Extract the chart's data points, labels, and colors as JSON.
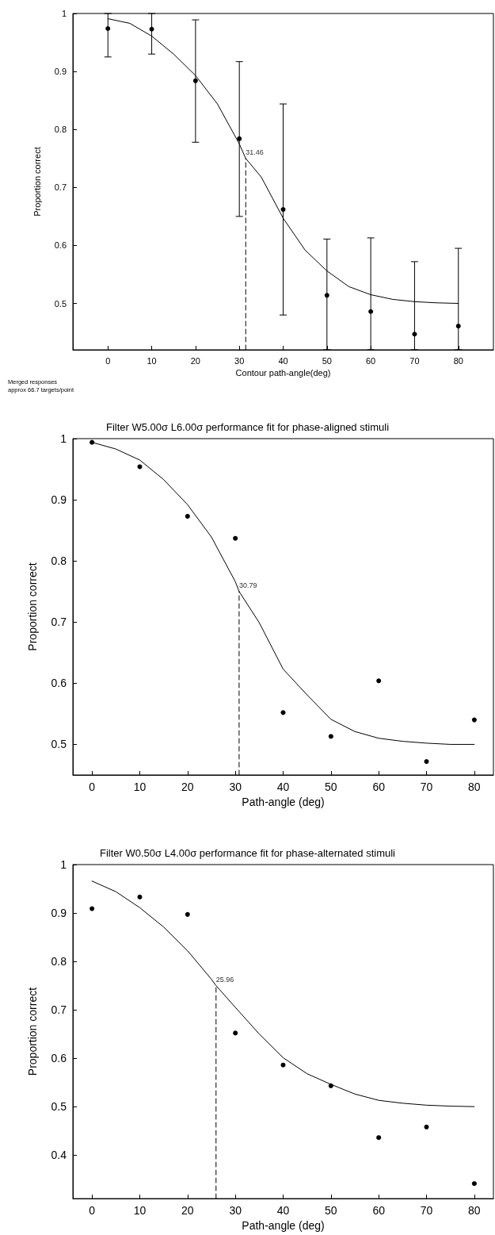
{
  "chart_data": [
    {
      "type": "scatter",
      "xlabel": "Contour path-angle(deg)",
      "ylabel": "Proportion correct",
      "xlim": [
        -8,
        88
      ],
      "xticks": [
        0,
        10,
        20,
        30,
        40,
        50,
        60,
        70,
        80
      ],
      "ylim": [
        0.42,
        1
      ],
      "yticks": [
        0.5,
        0.6,
        0.7,
        0.8,
        0.9,
        1
      ],
      "grid": false,
      "annotations": [
        "Merged responses",
        "approx 66.7 targets/point",
        {
          "text": "31.46",
          "x": 31.46,
          "y": 0.75
        }
      ],
      "series": [
        {
          "marker": "circle",
          "color": "#000000",
          "x": [
            0,
            10,
            20,
            30,
            40,
            50,
            60,
            70,
            80
          ],
          "values": [
            0.974,
            0.973,
            0.884,
            0.784,
            0.662,
            0.514,
            0.486,
            0.447,
            0.461
          ],
          "errors": [
            [
              0.925,
              1.0
            ],
            [
              0.93,
              1.0
            ],
            [
              0.778,
              0.989
            ],
            [
              0.65,
              0.917
            ],
            [
              0.48,
              0.844
            ],
            [
              0.42,
              0.611
            ],
            [
              0.42,
              0.613
            ],
            [
              0.42,
              0.572
            ],
            [
              0.42,
              0.595
            ]
          ]
        },
        {
          "type": "line",
          "marker": "none",
          "color": "#000000",
          "x": [
            0,
            5,
            10,
            15,
            20,
            25,
            30,
            31.46,
            35,
            40,
            45,
            50,
            55,
            60,
            65,
            70,
            75,
            80
          ],
          "values": [
            0.991,
            0.983,
            0.961,
            0.93,
            0.893,
            0.844,
            0.775,
            0.75,
            0.718,
            0.647,
            0.592,
            0.556,
            0.529,
            0.515,
            0.507,
            0.503,
            0.501,
            0.5
          ]
        },
        {
          "type": "line",
          "marker": "none",
          "line_style": "dashed",
          "color": "#000000",
          "x": [
            31.46,
            31.46
          ],
          "values": [
            0.42,
            0.75
          ]
        }
      ]
    },
    {
      "type": "scatter",
      "title": "Filter W5.00σ L6.00σ performance fit for phase-aligned stimuli",
      "xlabel": "Path-angle (deg)",
      "ylabel": "Proportion correct",
      "xlim": [
        -4,
        84
      ],
      "xticks": [
        0,
        10,
        20,
        30,
        40,
        50,
        60,
        70,
        80
      ],
      "ylim": [
        0.45,
        1
      ],
      "yticks": [
        0.5,
        0.6,
        0.7,
        0.8,
        0.9,
        1
      ],
      "grid": false,
      "annotations": [
        {
          "text": "30.79",
          "x": 30.79,
          "y": 0.75
        }
      ],
      "series": [
        {
          "marker": "circle",
          "color": "#000000",
          "x": [
            0,
            10,
            20,
            30,
            40,
            50,
            60,
            70,
            80
          ],
          "values": [
            0.994,
            0.954,
            0.873,
            0.837,
            0.552,
            0.513,
            0.604,
            0.472,
            0.54
          ]
        },
        {
          "type": "line",
          "marker": "none",
          "color": "#000000",
          "x": [
            0,
            5,
            10,
            15,
            20,
            25,
            30,
            30.79,
            35,
            40,
            45,
            50,
            55,
            60,
            65,
            70,
            75,
            80
          ],
          "values": [
            0.994,
            0.983,
            0.965,
            0.933,
            0.892,
            0.839,
            0.766,
            0.75,
            0.699,
            0.623,
            0.581,
            0.541,
            0.521,
            0.51,
            0.505,
            0.502,
            0.5,
            0.5
          ]
        },
        {
          "type": "line",
          "marker": "none",
          "line_style": "dashed",
          "color": "#000000",
          "x": [
            30.79,
            30.79
          ],
          "values": [
            0.45,
            0.75
          ]
        }
      ]
    },
    {
      "type": "scatter",
      "title": "Filter W0.50σ L4.00σ performance fit for phase-alternated stimuli",
      "xlabel": "Path-angle (deg)",
      "ylabel": "Proportion correct",
      "xlim": [
        -4,
        84
      ],
      "xticks": [
        0,
        10,
        20,
        30,
        40,
        50,
        60,
        70,
        80
      ],
      "ylim": [
        0.31,
        1
      ],
      "yticks": [
        0.4,
        0.5,
        0.6,
        0.7,
        0.8,
        0.9,
        1
      ],
      "grid": false,
      "annotations": [
        {
          "text": "25.96",
          "x": 25.96,
          "y": 0.75
        }
      ],
      "series": [
        {
          "marker": "circle",
          "color": "#000000",
          "x": [
            0,
            10,
            20,
            30,
            40,
            50,
            60,
            70,
            80
          ],
          "values": [
            0.909,
            0.933,
            0.897,
            0.652,
            0.586,
            0.543,
            0.436,
            0.458,
            0.341
          ]
        },
        {
          "type": "line",
          "marker": "none",
          "color": "#000000",
          "x": [
            0,
            5,
            10,
            15,
            20,
            25,
            25.96,
            30,
            35,
            40,
            45,
            50,
            55,
            60,
            65,
            70,
            75,
            80
          ],
          "values": [
            0.966,
            0.944,
            0.911,
            0.871,
            0.822,
            0.763,
            0.75,
            0.705,
            0.65,
            0.601,
            0.568,
            0.546,
            0.526,
            0.513,
            0.507,
            0.503,
            0.501,
            0.5
          ]
        },
        {
          "type": "line",
          "marker": "none",
          "line_style": "dashed",
          "color": "#000000",
          "x": [
            25.96,
            25.96
          ],
          "values": [
            0.31,
            0.75
          ]
        }
      ]
    }
  ]
}
